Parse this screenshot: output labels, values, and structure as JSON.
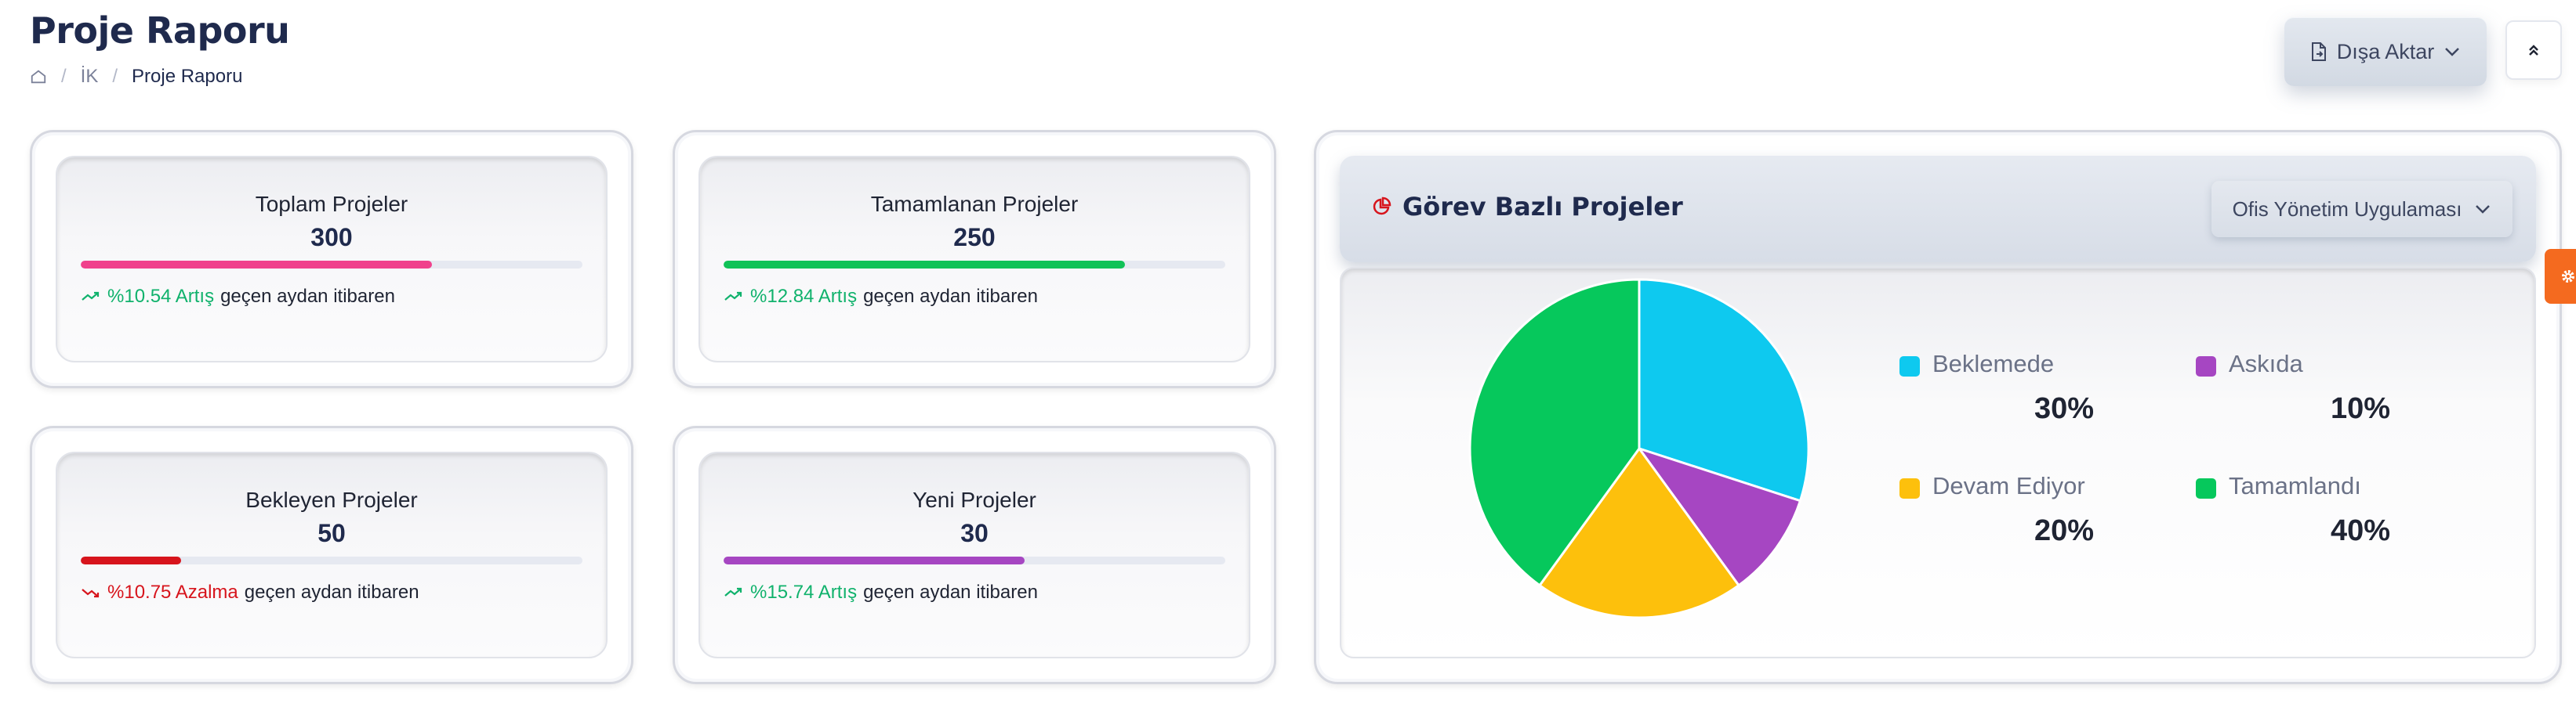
{
  "header": {
    "title": "Proje Raporu",
    "breadcrumb": [
      "İK",
      "Proje Raporu"
    ],
    "export_label": "Dışa Aktar"
  },
  "stats": [
    {
      "label": "Toplam Projeler",
      "value": "300",
      "progress": 0.7,
      "color": "#f0418c",
      "trend_pct": "%10.54 Artış",
      "trend_dir": "up",
      "trend_suffix": "geçen aydan itibaren"
    },
    {
      "label": "Tamamlanan Projeler",
      "value": "250",
      "progress": 0.8,
      "color": "#10c257",
      "trend_pct": "%12.84 Artış",
      "trend_dir": "up",
      "trend_suffix": "geçen aydan itibaren"
    },
    {
      "label": "Bekleyen Projeler",
      "value": "50",
      "progress": 0.2,
      "color": "#d7141c",
      "trend_pct": "%10.75 Azalma",
      "trend_dir": "down",
      "trend_suffix": "geçen aydan itibaren"
    },
    {
      "label": "Yeni Projeler",
      "value": "30",
      "progress": 0.6,
      "color": "#a646c2",
      "trend_pct": "%15.74 Artış",
      "trend_dir": "up",
      "trend_suffix": "geçen aydan itibaren"
    }
  ],
  "chart_panel": {
    "title": "Görev Bazlı Projeler",
    "select_value": "Ofis Yönetim Uygulaması"
  },
  "chart_data": {
    "type": "pie",
    "slices": [
      {
        "name": "Beklemede",
        "value": 30,
        "label": "30%",
        "color": "#0ec9ef"
      },
      {
        "name": "Askıda",
        "value": 10,
        "label": "10%",
        "color": "#a646c2"
      },
      {
        "name": "Devam Ediyor",
        "value": 20,
        "label": "20%",
        "color": "#fdc00c"
      },
      {
        "name": "Tamamlandı",
        "value": 40,
        "label": "40%",
        "color": "#06c85c"
      }
    ],
    "legend_position": "right"
  },
  "icons": {
    "home": "home-icon",
    "export": "file-export-icon",
    "chevron": "chevron-down-icon",
    "collapse": "chevrons-up-icon",
    "chart": "pie-chart-icon",
    "settings": "gear-icon"
  }
}
